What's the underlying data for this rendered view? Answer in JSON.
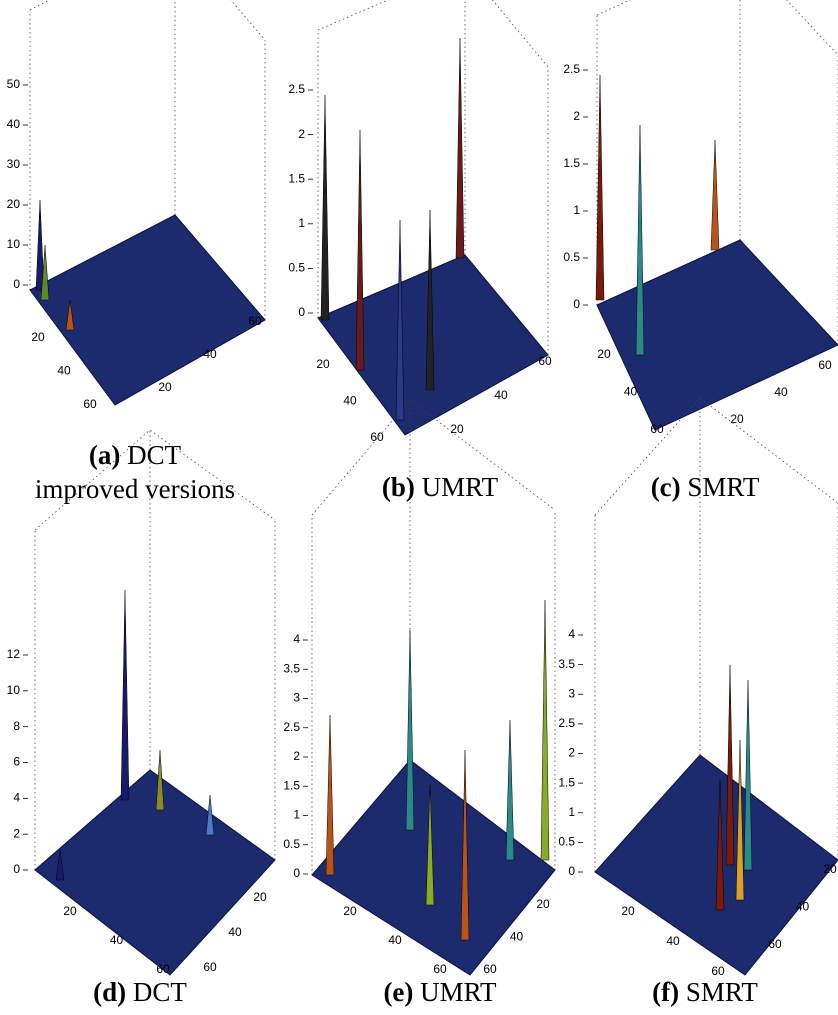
{
  "panels": [
    {
      "label": "(a)",
      "caption": "DCT",
      "zticks": [
        "0",
        "10",
        "20",
        "30",
        "40",
        "50"
      ],
      "lticks": [
        "20",
        "40",
        "60"
      ],
      "rticks": [
        "20",
        "40",
        "60"
      ]
    },
    {
      "label": "(b)",
      "caption": "UMRT",
      "zticks": [
        "0",
        "0.5",
        "1",
        "1.5",
        "2",
        "2.5"
      ],
      "lticks": [
        "20",
        "40",
        "60"
      ],
      "rticks": [
        "20",
        "40",
        "60"
      ]
    },
    {
      "label": "(c)",
      "caption": "SMRT",
      "zticks": [
        "0",
        "0.5",
        "1",
        "1.5",
        "2",
        "2.5"
      ],
      "lticks": [
        "20",
        "40",
        "60"
      ],
      "rticks": [
        "20",
        "40",
        "60"
      ]
    },
    {
      "label": "(d)",
      "caption": "DCT",
      "zticks": [
        "0",
        "2",
        "4",
        "6",
        "8",
        "10",
        "12"
      ],
      "lticks": [
        "20",
        "40",
        "60"
      ],
      "rticks": [
        "20",
        "40",
        "60"
      ]
    },
    {
      "label": "(e)",
      "caption": "UMRT",
      "zticks": [
        "0",
        "0.5",
        "1",
        "1.5",
        "2",
        "2.5",
        "3",
        "3.5",
        "4"
      ],
      "lticks": [
        "20",
        "40",
        "60"
      ],
      "rticks": [
        "20",
        "40",
        "60"
      ]
    },
    {
      "label": "(f)",
      "caption": "SMRT",
      "zticks": [
        "0",
        "0.5",
        "1",
        "1.5",
        "2",
        "2.5",
        "3",
        "3.5",
        "4"
      ],
      "lticks": [
        "20",
        "40",
        "60"
      ],
      "rticks": [
        "20",
        "40",
        "60"
      ]
    }
  ],
  "note": "improved versions"
}
